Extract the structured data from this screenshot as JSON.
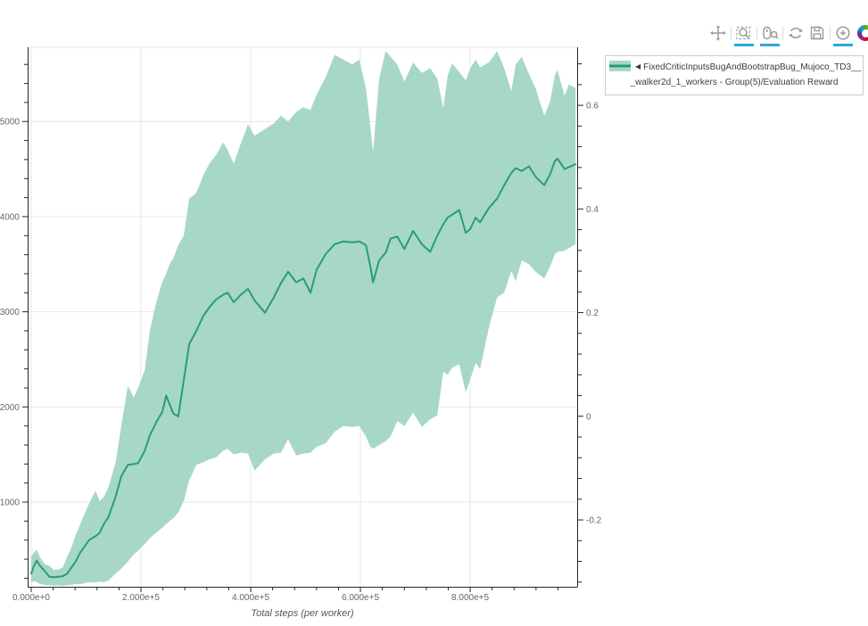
{
  "colors": {
    "line": "#2a9c76",
    "band": "#a7d8c5",
    "accent_blue": "#2ba8e0",
    "icon_gray": "#9b9b9b",
    "grid": "#e7e7e7",
    "axis": "#262626",
    "tick_label": "#666666",
    "axis_label": "#555555"
  },
  "toolbar": {
    "tools": [
      {
        "name": "pan",
        "active": false
      },
      {
        "name": "box-zoom",
        "active": true
      },
      {
        "name": "wheel-zoom",
        "active": true
      },
      {
        "name": "reset",
        "active": false
      },
      {
        "name": "save",
        "active": false
      },
      {
        "name": "hover",
        "active": true
      }
    ],
    "logo": "bokeh"
  },
  "legend": {
    "arrow": "◀",
    "label_line1": "FixedCriticInputsBugAndBootstrapBug_Mujoco_TD3__",
    "label_line2": "_walker2d_1_workers - Group(5)/Evaluation Reward"
  },
  "chart_data": {
    "type": "line",
    "title": "",
    "xlabel": "Total steps (per worker)",
    "grid": true,
    "legend_position": "top-right-outside",
    "xlim": [
      -6500,
      995000
    ],
    "ylim_left": [
      110,
      5780
    ],
    "ylim_right": [
      -0.329,
      0.712
    ],
    "x_ticks": {
      "values": [
        0,
        200000,
        400000,
        600000,
        800000
      ],
      "labels": [
        "0.000e+0",
        "2.000e+5",
        "4.000e+5",
        "6.000e+5",
        "8.000e+5"
      ],
      "minor_step": 40000,
      "minor_max": 960000
    },
    "y_ticks_left": {
      "values": [
        1000,
        2000,
        3000,
        4000,
        5000
      ],
      "labels": [
        "1000",
        "2000",
        "3000",
        "4000",
        "5000"
      ],
      "minor_step": 200
    },
    "y_ticks_right": {
      "values": [
        -0.2,
        0,
        0.2,
        0.4,
        0.6
      ],
      "labels": [
        "-0.2",
        "0",
        "0.2",
        "0.4",
        "0.6"
      ],
      "minor_step": 0.04
    },
    "series": [
      {
        "name": "FixedCriticInputsBugAndBootstrapBug_Mujoco_TD3___walker2d_1_workers - Group(5)/Evaluation Reward",
        "line_color": "#2a9c76",
        "band_color": "#a7d8c5",
        "x": [
          0,
          5000,
          10000,
          16000,
          24000,
          33000,
          41000,
          49000,
          57000,
          65000,
          73000,
          81000,
          89000,
          98000,
          106000,
          117000,
          125000,
          133000,
          141000,
          154000,
          164000,
          176000,
          187000,
          195000,
          207000,
          216000,
          228000,
          239000,
          246000,
          252000,
          259000,
          268000,
          278000,
          288000,
          301000,
          314000,
          325000,
          337000,
          350000,
          358000,
          369000,
          382000,
          395000,
          407000,
          426000,
          442000,
          455000,
          468000,
          483000,
          496000,
          509000,
          520000,
          537000,
          553000,
          569000,
          585000,
          598000,
          610000,
          618000,
          623000,
          634000,
          646000,
          655000,
          667000,
          680000,
          696000,
          712000,
          727000,
          740000,
          751000,
          759000,
          767000,
          780000,
          792000,
          800000,
          810000,
          818000,
          834000,
          849000,
          862000,
          875000,
          883000,
          894000,
          907000,
          919000,
          935000,
          946000,
          954000,
          959000,
          972000,
          980000,
          992000
        ],
        "mean": [
          250,
          330,
          385,
          330,
          280,
          215,
          210,
          215,
          220,
          245,
          310,
          375,
          465,
          540,
          605,
          640,
          680,
          775,
          845,
          1060,
          1270,
          1390,
          1400,
          1410,
          1540,
          1700,
          1840,
          1950,
          2120,
          2030,
          1930,
          1900,
          2280,
          2660,
          2800,
          2960,
          3050,
          3130,
          3180,
          3200,
          3100,
          3180,
          3240,
          3120,
          2990,
          3150,
          3300,
          3420,
          3310,
          3350,
          3200,
          3440,
          3610,
          3710,
          3740,
          3730,
          3740,
          3700,
          3480,
          3310,
          3540,
          3620,
          3770,
          3790,
          3660,
          3850,
          3710,
          3630,
          3800,
          3920,
          3990,
          4020,
          4070,
          3830,
          3870,
          3990,
          3940,
          4090,
          4190,
          4330,
          4460,
          4510,
          4480,
          4530,
          4420,
          4330,
          4450,
          4580,
          4610,
          4500,
          4520,
          4550
        ],
        "upper": [
          430,
          470,
          500,
          420,
          350,
          330,
          285,
          290,
          310,
          420,
          520,
          650,
          760,
          890,
          990,
          1120,
          1010,
          1060,
          1160,
          1420,
          1800,
          2220,
          2100,
          2200,
          2390,
          2800,
          3100,
          3320,
          3400,
          3500,
          3560,
          3700,
          3800,
          4190,
          4250,
          4440,
          4560,
          4650,
          4780,
          4700,
          4560,
          4770,
          4970,
          4850,
          4920,
          4980,
          5060,
          5000,
          5100,
          5150,
          5120,
          5280,
          5470,
          5700,
          5650,
          5600,
          5650,
          5350,
          4950,
          4680,
          5450,
          5740,
          5680,
          5600,
          5420,
          5620,
          5510,
          5560,
          5450,
          5140,
          5480,
          5610,
          5520,
          5430,
          5560,
          5650,
          5570,
          5620,
          5740,
          5560,
          5320,
          5600,
          5680,
          5500,
          5350,
          5060,
          5220,
          5480,
          5540,
          5270,
          5390,
          5350
        ],
        "lower": [
          150,
          170,
          160,
          140,
          130,
          125,
          120,
          125,
          120,
          125,
          130,
          140,
          135,
          150,
          160,
          155,
          165,
          160,
          175,
          250,
          300,
          375,
          450,
          490,
          560,
          620,
          680,
          730,
          770,
          800,
          830,
          890,
          1010,
          1230,
          1390,
          1420,
          1450,
          1470,
          1540,
          1560,
          1500,
          1520,
          1510,
          1330,
          1450,
          1510,
          1520,
          1660,
          1490,
          1510,
          1520,
          1580,
          1620,
          1740,
          1800,
          1790,
          1800,
          1690,
          1580,
          1560,
          1600,
          1640,
          1690,
          1850,
          1800,
          1940,
          1790,
          1870,
          1910,
          2370,
          2340,
          2410,
          2450,
          2150,
          2290,
          2460,
          2400,
          2830,
          3150,
          3200,
          3430,
          3320,
          3540,
          3500,
          3420,
          3350,
          3480,
          3600,
          3630,
          3640,
          3670,
          3710
        ]
      }
    ]
  }
}
